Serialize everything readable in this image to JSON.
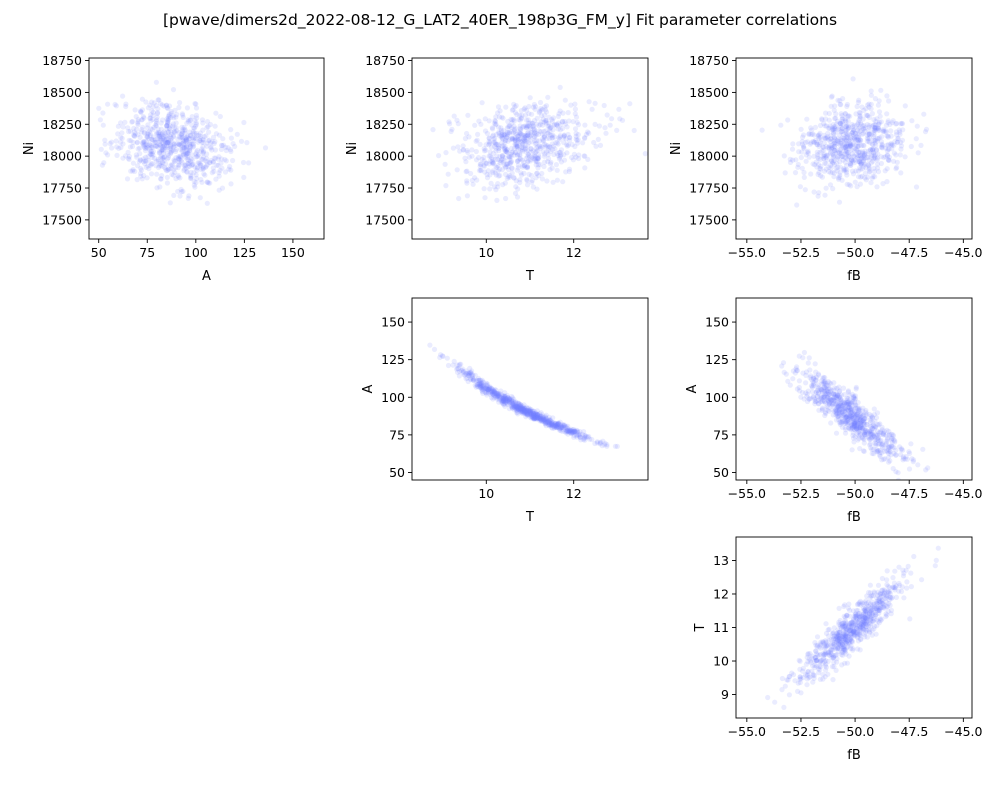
{
  "figure_title": "[pwave/dimers2d_2022-08-12_G_LAT2_40ER_198p3G_FM_y] Fit parameter correlations",
  "colors": {
    "point": "#6f7dff",
    "axes": "#000000"
  },
  "chart_data": [
    {
      "id": "ni-vs-a",
      "type": "scatter",
      "xlabel": "A",
      "ylabel": "Ni",
      "xlim": [
        45,
        166
      ],
      "ylim": [
        17350,
        18770
      ],
      "xticks": [
        50,
        75,
        100,
        125,
        150
      ],
      "xtick_labels": [
        "50",
        "75",
        "100",
        "125",
        "150"
      ],
      "yticks": [
        17500,
        17750,
        18000,
        18250,
        18500,
        18750
      ],
      "ytick_labels": [
        "17500",
        "17750",
        "18000",
        "18250",
        "18500",
        "18750"
      ],
      "cloud": {
        "x_mean": 88,
        "x_sd": 15,
        "y_mean": 18090,
        "y_sd": 160,
        "corr": -0.25,
        "n": 700
      }
    },
    {
      "id": "ni-vs-t",
      "type": "scatter",
      "xlabel": "T",
      "ylabel": "Ni",
      "xlim": [
        8.3,
        13.7
      ],
      "ylim": [
        17350,
        18770
      ],
      "xticks": [
        10,
        12
      ],
      "xtick_labels": [
        "10",
        "12"
      ],
      "yticks": [
        17500,
        17750,
        18000,
        18250,
        18500,
        18750
      ],
      "ytick_labels": [
        "17500",
        "17750",
        "18000",
        "18250",
        "18500",
        "18750"
      ],
      "cloud": {
        "x_mean": 10.9,
        "x_sd": 0.75,
        "y_mean": 18090,
        "y_sd": 160,
        "corr": 0.22,
        "n": 700
      }
    },
    {
      "id": "ni-vs-fb",
      "type": "scatter",
      "xlabel": "fB",
      "ylabel": "Ni",
      "xlim": [
        -55.5,
        -44.6
      ],
      "ylim": [
        17350,
        18770
      ],
      "xticks": [
        -55,
        -52.5,
        -50,
        -47.5,
        -45
      ],
      "xtick_labels": [
        "−55.0",
        "−52.5",
        "−50.0",
        "−47.5",
        "−45.0"
      ],
      "yticks": [
        17500,
        17750,
        18000,
        18250,
        18500,
        18750
      ],
      "ytick_labels": [
        "17500",
        "17750",
        "18000",
        "18250",
        "18500",
        "18750"
      ],
      "cloud": {
        "x_mean": -50.2,
        "x_sd": 1.2,
        "y_mean": 18090,
        "y_sd": 160,
        "corr": 0.18,
        "n": 700
      }
    },
    {
      "id": "a-vs-t",
      "type": "scatter",
      "xlabel": "T",
      "ylabel": "A",
      "xlim": [
        8.3,
        13.7
      ],
      "ylim": [
        45,
        166
      ],
      "xticks": [
        10,
        12
      ],
      "xtick_labels": [
        "10",
        "12"
      ],
      "yticks": [
        50,
        75,
        100,
        125,
        150
      ],
      "ytick_labels": [
        "50",
        "75",
        "100",
        "125",
        "150"
      ],
      "cloud": {
        "x_mean": 10.9,
        "x_sd": 0.75,
        "curve_a": 6700,
        "curve_p": 1.8,
        "rel_noise": 0.018,
        "n": 700
      }
    },
    {
      "id": "a-vs-fb",
      "type": "scatter",
      "xlabel": "fB",
      "ylabel": "A",
      "xlim": [
        -55.5,
        -44.6
      ],
      "ylim": [
        45,
        166
      ],
      "xticks": [
        -55,
        -52.5,
        -50,
        -47.5,
        -45
      ],
      "xtick_labels": [
        "−55.0",
        "−52.5",
        "−50.0",
        "−47.5",
        "−45.0"
      ],
      "yticks": [
        50,
        75,
        100,
        125,
        150
      ],
      "ytick_labels": [
        "50",
        "75",
        "100",
        "125",
        "150"
      ],
      "cloud": {
        "x_mean": -50.2,
        "x_sd": 1.2,
        "y_mean": 88,
        "y_sd": 15,
        "corr": -0.88,
        "n": 700
      }
    },
    {
      "id": "t-vs-fb",
      "type": "scatter",
      "xlabel": "fB",
      "ylabel": "T",
      "xlim": [
        -55.5,
        -44.6
      ],
      "ylim": [
        8.3,
        13.7
      ],
      "xticks": [
        -55,
        -52.5,
        -50,
        -47.5,
        -45
      ],
      "xtick_labels": [
        "−55.0",
        "−52.5",
        "−50.0",
        "−47.5",
        "−45.0"
      ],
      "yticks": [
        9,
        10,
        11,
        12,
        13
      ],
      "ytick_labels": [
        "9",
        "10",
        "11",
        "12",
        "13"
      ],
      "cloud": {
        "x_mean": -50.2,
        "x_sd": 1.2,
        "y_mean": 10.9,
        "y_sd": 0.75,
        "corr": 0.9,
        "n": 700
      }
    }
  ]
}
